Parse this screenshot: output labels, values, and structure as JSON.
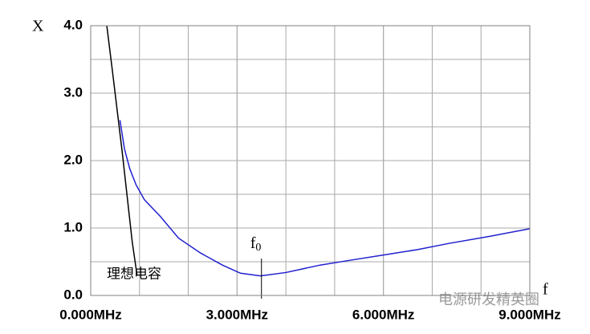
{
  "chart_data": {
    "type": "line",
    "y_label": "X",
    "x_label": "f",
    "xlim": [
      0,
      9
    ],
    "ylim": [
      0,
      4
    ],
    "xticks": [
      {
        "value": 0,
        "label": "0.000MHz"
      },
      {
        "value": 3,
        "label": "3.000MHz"
      },
      {
        "value": 6,
        "label": "6.000MHz"
      },
      {
        "value": 9,
        "label": "9.000MHz"
      }
    ],
    "yticks": [
      {
        "value": 0,
        "label": "0.0"
      },
      {
        "value": 1,
        "label": "1.0"
      },
      {
        "value": 2,
        "label": "2.0"
      },
      {
        "value": 3,
        "label": "3.0"
      },
      {
        "value": 4,
        "label": "4.0"
      }
    ],
    "xgrid": [
      1,
      2,
      3,
      4,
      5,
      6,
      7,
      8
    ],
    "ygrid": [
      0.5,
      1.5,
      2.5,
      3.5
    ],
    "grid": true,
    "series": [
      {
        "name": "理想电容",
        "color": "#000000",
        "x": [
          0.33,
          0.45,
          0.55,
          0.65,
          0.75,
          0.85,
          0.95
        ],
        "values": [
          4.0,
          3.3,
          2.7,
          2.1,
          1.45,
          0.8,
          0.3
        ]
      },
      {
        "color": "#2020d0",
        "x": [
          0.6,
          0.69,
          0.8,
          0.93,
          1.1,
          1.43,
          1.8,
          2.25,
          2.7,
          3.07,
          3.48,
          4.0,
          4.7,
          5.3,
          6.0,
          6.7,
          7.33,
          8.2,
          9.0
        ],
        "values": [
          2.6,
          2.18,
          1.88,
          1.64,
          1.42,
          1.17,
          0.85,
          0.63,
          0.45,
          0.33,
          0.29,
          0.34,
          0.45,
          0.52,
          0.6,
          0.68,
          0.77,
          0.88,
          0.99
        ]
      }
    ],
    "annotation": {
      "text": "f",
      "sub": "0",
      "x": 3.5
    },
    "watermark": "电源研发精英圈"
  }
}
